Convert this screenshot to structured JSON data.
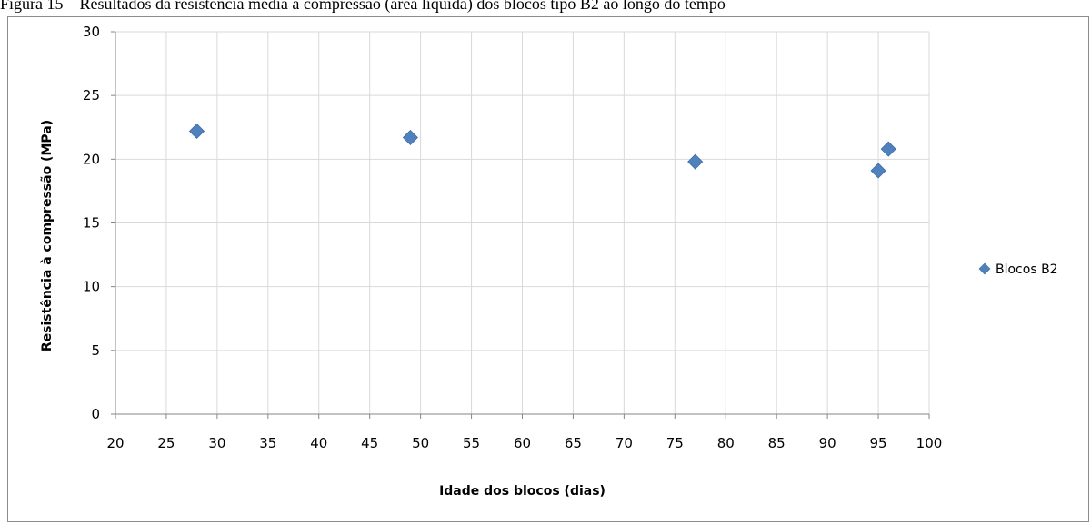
{
  "caption": "Figura 15 – Resultados da resistência média à compressão (área líquida) dos blocos tipo B2 ao longo do tempo",
  "chart_data": {
    "type": "scatter",
    "xlabel": "Idade dos blocos (dias)",
    "ylabel": "Resistência à compressão (MPa)",
    "xlim": [
      20,
      100
    ],
    "ylim": [
      0,
      30
    ],
    "xticks": [
      20,
      25,
      30,
      35,
      40,
      45,
      50,
      55,
      60,
      65,
      70,
      75,
      80,
      85,
      90,
      95,
      100
    ],
    "yticks": [
      0,
      5,
      10,
      15,
      20,
      25,
      30
    ],
    "grid": true,
    "legend_position": "right",
    "series": [
      {
        "name": "Blocos B2",
        "color": "#4f81bd",
        "marker": "diamond",
        "points": [
          {
            "x": 28,
            "y": 22.2
          },
          {
            "x": 49,
            "y": 21.7
          },
          {
            "x": 77,
            "y": 19.8
          },
          {
            "x": 95,
            "y": 19.1
          },
          {
            "x": 96,
            "y": 20.8
          }
        ]
      }
    ]
  }
}
